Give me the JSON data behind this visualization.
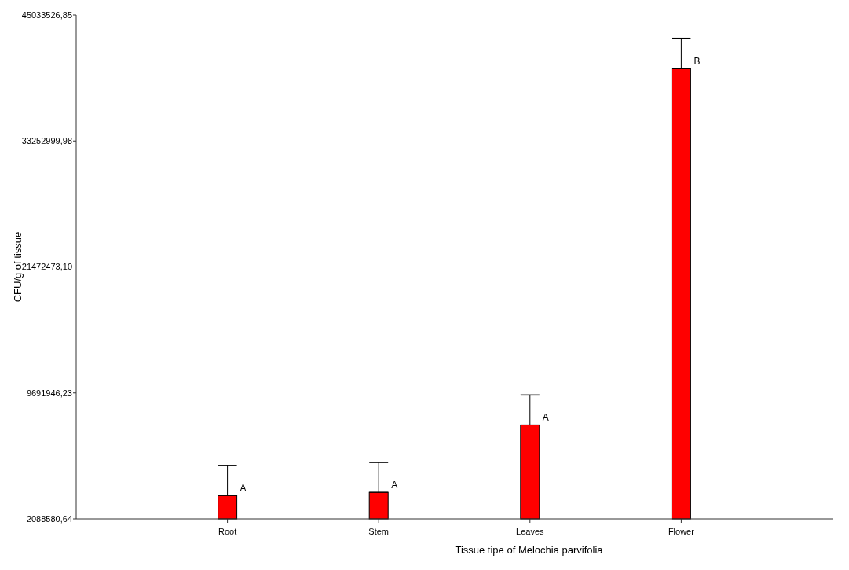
{
  "chart_data": {
    "type": "bar",
    "xlabel": "Tissue tipe of Melochia parvifolia",
    "ylabel": "CFU/g of tissue",
    "categories": [
      "Root",
      "Stem",
      "Leaves",
      "Flower"
    ],
    "values": [
      2188580.64,
      2488580.64,
      8788580.64,
      42088580.64
    ],
    "base": [
      -2088580.64,
      -2088580.64,
      -2088580.64,
      -2088580.64
    ],
    "errors": [
      [
        100000,
        2900000
      ],
      [
        400000,
        3200000
      ],
      [
        6700000,
        9500000
      ],
      [
        40000000,
        42850000
      ]
    ],
    "color": "#ff0000",
    "ylim": [
      -2088580.64,
      45033526.85
    ],
    "yticks": [
      {
        "value": -2088580.64,
        "label": "-2088580,64"
      },
      {
        "value": 9691946.23,
        "label": "9691946,23"
      },
      {
        "value": 21472473.1,
        "label": "21472473,10"
      },
      {
        "value": 33252999.98,
        "label": "33252999,98"
      },
      {
        "value": 45033526.85,
        "label": "45033526,85"
      }
    ],
    "annotations": [
      {
        "text": "A",
        "x": "Root",
        "y": 100000
      },
      {
        "text": "A",
        "x": "Stem",
        "y": 400000
      },
      {
        "text": "A",
        "x": "Leaves",
        "y": 6700000
      },
      {
        "text": "B",
        "x": "Flower",
        "y": 40000000
      }
    ],
    "grid": false
  }
}
